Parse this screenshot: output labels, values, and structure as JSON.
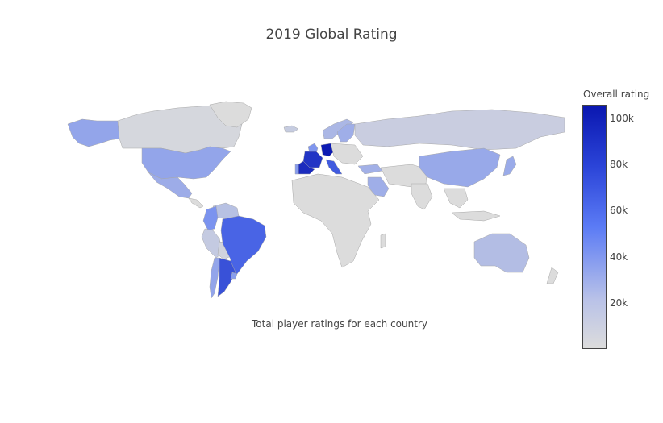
{
  "title": "2019 Global Rating",
  "caption": "Total player ratings for each country",
  "legend": {
    "title": "Overall rating",
    "ticks": [
      "100k",
      "80k",
      "60k",
      "40k",
      "20k"
    ],
    "tick_values": [
      100000,
      80000,
      60000,
      40000,
      20000
    ],
    "min": 0,
    "max": 106000,
    "color_low": "#dcdcdc",
    "color_mid": "#5b7bf5",
    "color_high": "#0a17b0"
  },
  "chart_data": {
    "type": "choropleth",
    "scope": "world",
    "no_data_color": "#dcdcdc",
    "regions": [
      {
        "name": "Germany",
        "value": 104000
      },
      {
        "name": "Spain",
        "value": 95000
      },
      {
        "name": "France",
        "value": 90000
      },
      {
        "name": "Argentina",
        "value": 75000
      },
      {
        "name": "Italy",
        "value": 70000
      },
      {
        "name": "Brazil",
        "value": 65000
      },
      {
        "name": "Colombia",
        "value": 40000
      },
      {
        "name": "England",
        "value": 38000
      },
      {
        "name": "Portugal",
        "value": 35000
      },
      {
        "name": "United States",
        "value": 30000
      },
      {
        "name": "China",
        "value": 28000
      },
      {
        "name": "Japan",
        "value": 27000
      },
      {
        "name": "Mexico",
        "value": 26000
      },
      {
        "name": "Alaska",
        "value": 30000
      },
      {
        "name": "Sweden",
        "value": 25000
      },
      {
        "name": "Norway",
        "value": 20000
      },
      {
        "name": "Saudi Arabia",
        "value": 25000
      },
      {
        "name": "Turkey",
        "value": 24000
      },
      {
        "name": "Chile",
        "value": 30000
      },
      {
        "name": "Uruguay",
        "value": 34000
      },
      {
        "name": "Australia",
        "value": 17000
      },
      {
        "name": "Iceland",
        "value": 9000
      },
      {
        "name": "Russia",
        "value": 8000
      },
      {
        "name": "Canada",
        "value": 3000
      },
      {
        "name": "Venezuela",
        "value": 15000
      },
      {
        "name": "Peru",
        "value": 10000
      },
      {
        "name": "Bolivia",
        "value": 5000
      },
      {
        "name": "Greenland",
        "value": 0
      }
    ]
  }
}
